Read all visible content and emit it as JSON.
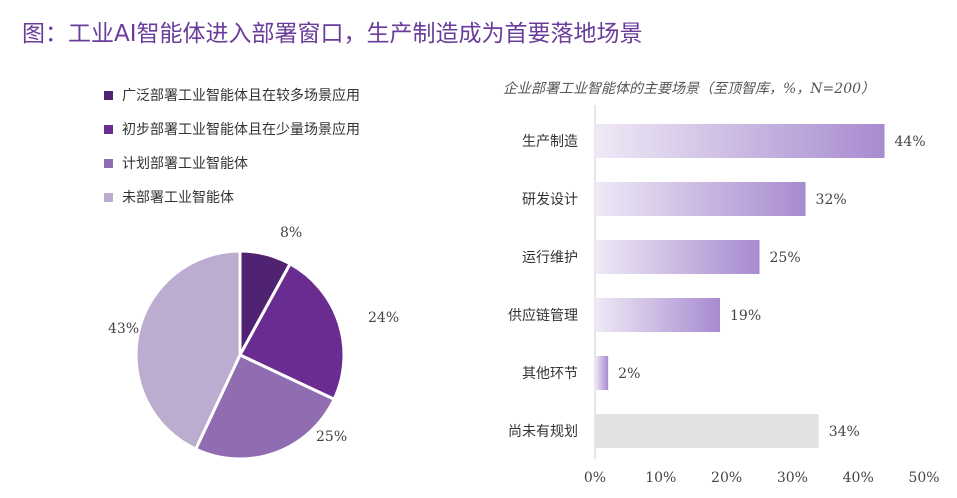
{
  "title": "图：工业AI智能体进入部署窗口，生产制造成为首要落地场景",
  "chart_data": [
    {
      "type": "pie",
      "labels": [
        "广泛部署工业智能体且在较多场景应用",
        "初步部署工业智能体且在少量场景应用",
        "计划部署工业智能体",
        "未部署工业智能体"
      ],
      "values": [
        8,
        24,
        25,
        43
      ],
      "value_labels": [
        "8%",
        "24%",
        "25%",
        "43%"
      ],
      "colors": [
        "#4f2372",
        "#6a2c91",
        "#8f6db0",
        "#bcadd0"
      ],
      "legend": "top"
    },
    {
      "type": "bar",
      "orientation": "horizontal",
      "title": "企业部署工业智能体的主要场景（至顶智库，%，N=200）",
      "categories": [
        "生产制造",
        "研发设计",
        "运行维护",
        "供应链管理",
        "其他环节",
        "尚未有规划"
      ],
      "values": [
        44,
        32,
        25,
        19,
        2,
        34
      ],
      "value_labels": [
        "44%",
        "32%",
        "25%",
        "19%",
        "2%",
        "34%"
      ],
      "xlim": [
        0,
        50
      ],
      "xticks": [
        "0%",
        "10%",
        "20%",
        "30%",
        "40%",
        "50%"
      ],
      "colors": {
        "gradient_start": "#efe9f6",
        "gradient_end": "#a78bcf",
        "gray": "#e2e2e2"
      }
    }
  ]
}
